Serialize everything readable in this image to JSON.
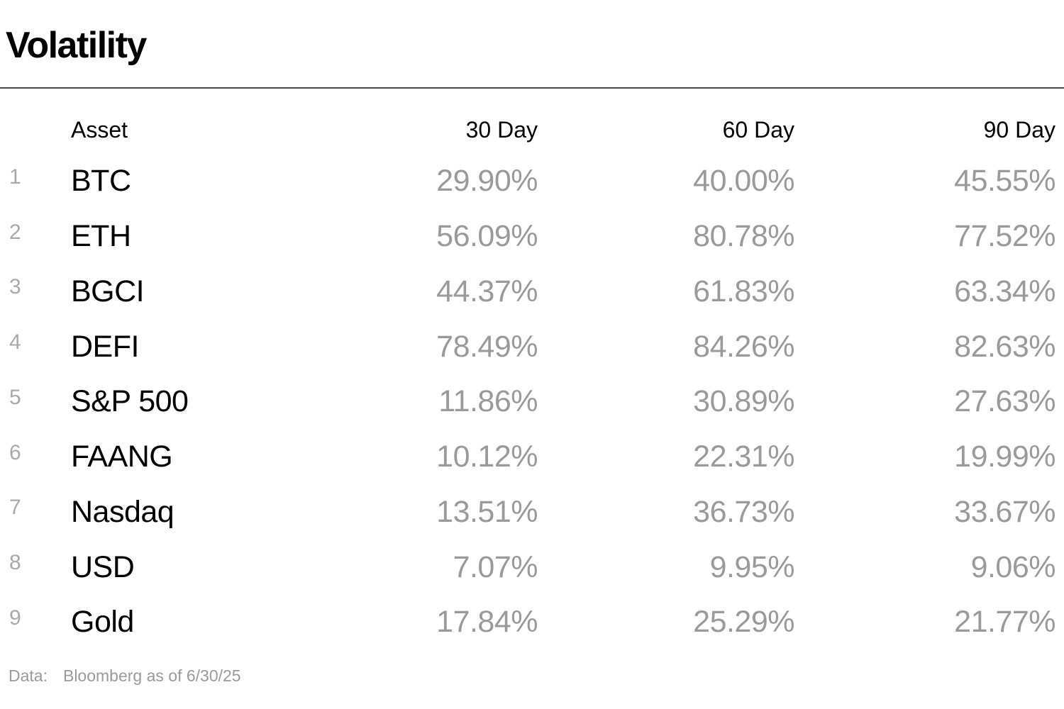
{
  "title": "Volatility",
  "chart_data": {
    "type": "table",
    "title": "Volatility",
    "columns": [
      "Asset",
      "30 Day",
      "60 Day",
      "90 Day"
    ],
    "rows": [
      {
        "rank": "1",
        "asset": "BTC",
        "v30": "29.90%",
        "v60": "40.00%",
        "v90": "45.55%"
      },
      {
        "rank": "2",
        "asset": "ETH",
        "v30": "56.09%",
        "v60": "80.78%",
        "v90": "77.52%"
      },
      {
        "rank": "3",
        "asset": "BGCI",
        "v30": "44.37%",
        "v60": "61.83%",
        "v90": "63.34%"
      },
      {
        "rank": "4",
        "asset": "DEFI",
        "v30": "78.49%",
        "v60": "84.26%",
        "v90": "82.63%"
      },
      {
        "rank": "5",
        "asset": "S&P 500",
        "v30": "11.86%",
        "v60": "30.89%",
        "v90": "27.63%"
      },
      {
        "rank": "6",
        "asset": "FAANG",
        "v30": "10.12%",
        "v60": "22.31%",
        "v90": "19.99%"
      },
      {
        "rank": "7",
        "asset": "Nasdaq",
        "v30": "13.51%",
        "v60": "36.73%",
        "v90": "33.67%"
      },
      {
        "rank": "8",
        "asset": "USD",
        "v30": "7.07%",
        "v60": "9.95%",
        "v90": "9.06%"
      },
      {
        "rank": "9",
        "asset": "Gold",
        "v30": "17.84%",
        "v60": "25.29%",
        "v90": "21.77%"
      }
    ],
    "source_label": "Data:",
    "source": "Bloomberg as of 6/30/25"
  },
  "colors": {
    "text": "#000000",
    "value_gray": "#9a9a9a",
    "rank_gray": "#a9a9a9",
    "divider": "#4a4a4a",
    "background": "#ffffff"
  }
}
